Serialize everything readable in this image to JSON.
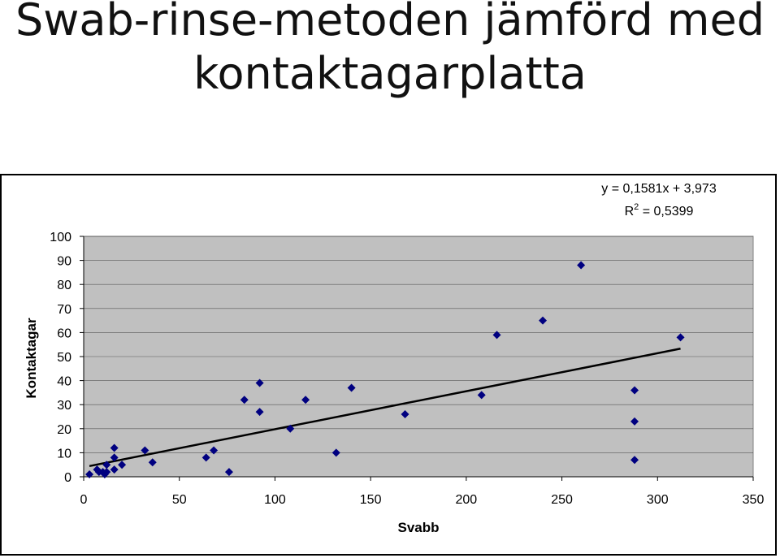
{
  "slide": {
    "title_line1": "Swab-rinse-metoden jämförd med",
    "title_line2": "kontaktagarplatta"
  },
  "chart_data": {
    "type": "scatter",
    "xlabel": "Svabb",
    "ylabel": "Kontaktagar",
    "xlim": [
      0,
      350
    ],
    "ylim": [
      0,
      100
    ],
    "x_ticks": [
      0,
      50,
      100,
      150,
      200,
      250,
      300,
      350
    ],
    "y_ticks": [
      0,
      10,
      20,
      30,
      40,
      50,
      60,
      70,
      80,
      90,
      100
    ],
    "grid": true,
    "plot_background": "#c0c0c0",
    "marker_color": "#000080",
    "marker": "diamond",
    "trendline": {
      "type": "linear",
      "slope": 0.1581,
      "intercept": 3.973,
      "x_range": [
        3,
        312
      ],
      "color": "#000000",
      "equation_label": "y = 0,1581x + 3,973",
      "r2_label_prefix": "R",
      "r2_label_sup": "2",
      "r2_label_suffix": " = 0,5399"
    },
    "points": [
      {
        "x": 3,
        "y": 1
      },
      {
        "x": 7,
        "y": 3
      },
      {
        "x": 8,
        "y": 2
      },
      {
        "x": 10,
        "y": 2
      },
      {
        "x": 11,
        "y": 1
      },
      {
        "x": 12,
        "y": 2
      },
      {
        "x": 12,
        "y": 5
      },
      {
        "x": 16,
        "y": 8
      },
      {
        "x": 16,
        "y": 12
      },
      {
        "x": 16,
        "y": 3
      },
      {
        "x": 20,
        "y": 5
      },
      {
        "x": 32,
        "y": 11
      },
      {
        "x": 36,
        "y": 6
      },
      {
        "x": 64,
        "y": 8
      },
      {
        "x": 68,
        "y": 11
      },
      {
        "x": 76,
        "y": 2
      },
      {
        "x": 84,
        "y": 32
      },
      {
        "x": 92,
        "y": 27
      },
      {
        "x": 92,
        "y": 39
      },
      {
        "x": 108,
        "y": 20
      },
      {
        "x": 116,
        "y": 32
      },
      {
        "x": 132,
        "y": 10
      },
      {
        "x": 140,
        "y": 37
      },
      {
        "x": 168,
        "y": 26
      },
      {
        "x": 208,
        "y": 34
      },
      {
        "x": 216,
        "y": 59
      },
      {
        "x": 240,
        "y": 65
      },
      {
        "x": 260,
        "y": 88
      },
      {
        "x": 288,
        "y": 36
      },
      {
        "x": 288,
        "y": 23
      },
      {
        "x": 288,
        "y": 7
      },
      {
        "x": 312,
        "y": 58
      }
    ]
  }
}
